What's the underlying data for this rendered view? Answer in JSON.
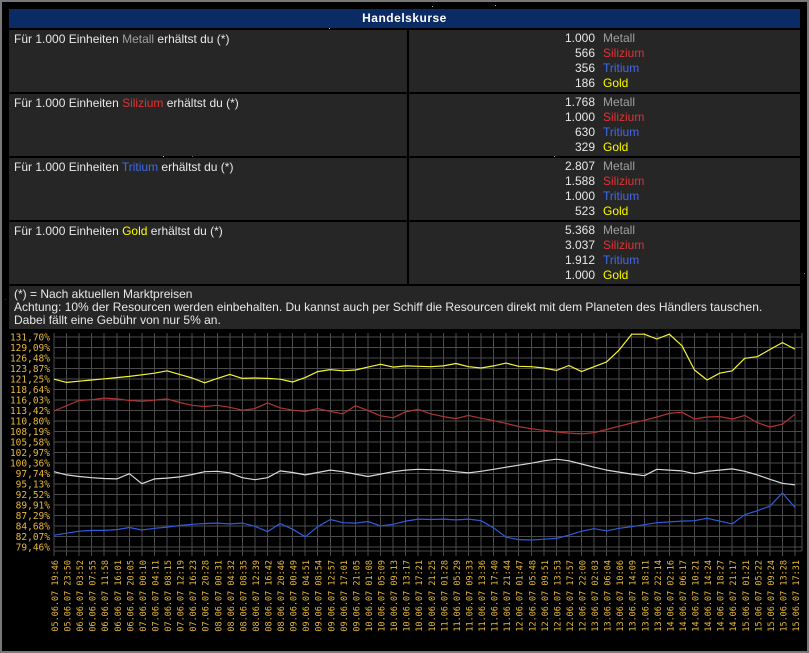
{
  "window": {
    "title": "Handelskurse"
  },
  "table": {
    "row_template": {
      "prefix": "Für 1.000 Einheiten",
      "suffix": "erhältst du (*)"
    },
    "rows": [
      {
        "resource": "Metall",
        "rates": [
          [
            "1.000",
            "Metall"
          ],
          [
            "566",
            "Silizium"
          ],
          [
            "356",
            "Tritium"
          ],
          [
            "186",
            "Gold"
          ]
        ]
      },
      {
        "resource": "Silizium",
        "rates": [
          [
            "1.768",
            "Metall"
          ],
          [
            "1.000",
            "Silizium"
          ],
          [
            "630",
            "Tritium"
          ],
          [
            "329",
            "Gold"
          ]
        ]
      },
      {
        "resource": "Tritium",
        "rates": [
          [
            "2.807",
            "Metall"
          ],
          [
            "1.588",
            "Silizium"
          ],
          [
            "1.000",
            "Tritium"
          ],
          [
            "523",
            "Gold"
          ]
        ]
      },
      {
        "resource": "Gold",
        "rates": [
          [
            "5.368",
            "Metall"
          ],
          [
            "3.037",
            "Silizium"
          ],
          [
            "1.912",
            "Tritium"
          ],
          [
            "1.000",
            "Gold"
          ]
        ]
      }
    ]
  },
  "notes": {
    "line1": "(*) = Nach aktuellen Marktpreisen",
    "line2": "Achtung: 10% der Resourcen werden einbehalten. Du kannst auch per Schiff die Resourcen direkt mit dem Planeten des Händlers tauschen. Dabei fällt eine Gebühr von nur 5% an."
  },
  "colors": {
    "header_bg": "#0b2b64",
    "cell_bg": "#262626",
    "grid": "#4b4b4b",
    "axis_label": "#e9b938",
    "resource": {
      "Metall": "#9f9f9f",
      "Silizium": "#e13232",
      "Tritium": "#4169e8",
      "Gold": "#fdfd00"
    }
  },
  "chart_data": {
    "type": "line",
    "title": "",
    "xlabel": "",
    "ylabel": "",
    "grid": true,
    "legend": false,
    "y_axis": {
      "tick_labels": [
        "131,70%",
        "129,09%",
        "126,48%",
        "123,87%",
        "121,25%",
        "118,64%",
        "116,03%",
        "113,42%",
        "110,80%",
        "108,19%",
        "105,58%",
        "102,97%",
        "100,36%",
        "97,74%",
        "95,13%",
        "92,52%",
        "89,91%",
        "87,29%",
        "84,68%",
        "82,07%",
        "79,46%"
      ],
      "tick_values": [
        131.7,
        129.09,
        126.48,
        123.87,
        121.25,
        118.64,
        116.03,
        113.42,
        110.8,
        108.19,
        105.58,
        102.97,
        100.36,
        97.74,
        95.13,
        92.52,
        89.91,
        87.29,
        84.68,
        82.07,
        79.46
      ]
    },
    "x_labels": [
      "05.06.07 19:46",
      "05.06.07 23:50",
      "06.06.07 03:52",
      "06.06.07 07:55",
      "06.06.07 11:58",
      "06.06.07 16:01",
      "06.06.07 20:05",
      "07.06.07 00:10",
      "07.06.07 04:11",
      "07.06.07 08:15",
      "07.06.07 12:19",
      "07.06.07 16:23",
      "07.06.07 20:28",
      "08.06.07 00:31",
      "08.06.07 04:32",
      "08.06.07 08:35",
      "08.06.07 12:39",
      "08.06.07 16:42",
      "08.06.07 20:46",
      "09.06.07 00:49",
      "09.06.07 04:51",
      "09.06.07 08:54",
      "09.06.07 12:57",
      "09.06.07 17:01",
      "09.06.07 21:05",
      "10.06.07 01:08",
      "10.06.07 05:09",
      "10.06.07 09:13",
      "10.06.07 13:17",
      "10.06.07 17:21",
      "10.06.07 21:25",
      "11.06.07 01:28",
      "11.06.07 05:29",
      "11.06.07 09:33",
      "11.06.07 13:36",
      "11.06.07 17:40",
      "11.06.07 21:44",
      "12.06.07 01:47",
      "12.06.07 05:48",
      "12.06.07 09:51",
      "12.06.07 13:53",
      "12.06.07 17:57",
      "12.06.07 22:00",
      "13.06.07 02:03",
      "13.06.07 06:04",
      "13.06.07 10:06",
      "13.06.07 14:09",
      "13.06.07 18:11",
      "13.06.07 22:14",
      "14.06.07 02:16",
      "14.06.07 06:17",
      "14.06.07 10:21",
      "14.06.07 14:24",
      "14.06.07 18:27",
      "14.06.07 21:17",
      "15.06.07 01:21",
      "15.06.07 05:22",
      "15.06.07 09:24",
      "15.06.07 13:28",
      "15.06.07 17:31"
    ],
    "series": [
      {
        "name": "Metall",
        "color": "#d9d9d9",
        "values": [
          98.2,
          97.4,
          97.0,
          96.7,
          96.5,
          96.4,
          97.7,
          95.2,
          96.4,
          96.6,
          96.9,
          97.5,
          98.2,
          98.3,
          97.9,
          96.7,
          96.2,
          96.7,
          98.4,
          98.0,
          97.4,
          98.0,
          98.6,
          98.2,
          97.6,
          97.0,
          97.6,
          98.2,
          98.6,
          98.8,
          98.7,
          98.6,
          98.2,
          97.9,
          98.3,
          98.8,
          99.3,
          99.8,
          100.3,
          100.9,
          101.3,
          100.9,
          100.1,
          99.3,
          98.6,
          98.1,
          97.6,
          97.2,
          98.8,
          98.6,
          98.4,
          97.7,
          98.3,
          98.6,
          98.9,
          98.3,
          97.4,
          96.3,
          95.3,
          94.9
        ]
      },
      {
        "name": "Silizium",
        "color": "#b23434",
        "values": [
          113.3,
          114.6,
          115.9,
          116.1,
          116.5,
          116.3,
          115.9,
          115.7,
          116.0,
          116.3,
          115.4,
          114.7,
          114.4,
          114.7,
          114.2,
          113.5,
          113.9,
          115.3,
          114.1,
          113.5,
          113.2,
          113.9,
          113.2,
          112.6,
          114.6,
          113.4,
          112.1,
          111.6,
          113.1,
          113.7,
          112.6,
          111.9,
          111.4,
          112.2,
          111.5,
          110.9,
          110.2,
          109.4,
          108.9,
          108.5,
          108.1,
          107.8,
          107.6,
          107.9,
          108.7,
          109.5,
          110.3,
          111.0,
          111.8,
          112.7,
          113.0,
          111.3,
          111.8,
          111.9,
          111.3,
          112.2,
          110.4,
          109.3,
          110.0,
          112.5
        ]
      },
      {
        "name": "Tritium",
        "color": "#2e5ddd",
        "values": [
          82.4,
          82.9,
          83.4,
          83.6,
          83.6,
          83.8,
          84.3,
          83.7,
          84.1,
          84.4,
          84.8,
          85.1,
          85.3,
          85.4,
          85.2,
          85.4,
          84.6,
          83.3,
          85.3,
          83.9,
          82.0,
          84.5,
          86.3,
          85.5,
          85.4,
          85.8,
          84.7,
          85.1,
          85.9,
          86.4,
          86.3,
          86.4,
          86.2,
          86.4,
          86.0,
          84.2,
          81.9,
          81.3,
          81.2,
          81.4,
          81.6,
          82.4,
          83.4,
          84.0,
          83.5,
          84.1,
          84.5,
          85.0,
          85.5,
          85.7,
          85.9,
          86.0,
          86.6,
          85.9,
          85.2,
          87.5,
          88.5,
          89.6,
          92.9,
          89.3
        ]
      },
      {
        "name": "Gold",
        "color": "#f4f435",
        "values": [
          121.2,
          120.4,
          120.7,
          121.0,
          121.3,
          121.6,
          121.9,
          122.3,
          122.7,
          123.3,
          122.4,
          121.5,
          120.3,
          121.4,
          122.4,
          121.4,
          121.5,
          121.4,
          121.2,
          120.5,
          121.6,
          123.1,
          123.6,
          123.3,
          123.5,
          124.2,
          124.9,
          124.2,
          124.5,
          124.4,
          124.3,
          124.5,
          125.1,
          124.3,
          124.0,
          124.5,
          125.2,
          124.4,
          124.3,
          124.0,
          123.4,
          124.6,
          123.1,
          124.3,
          125.5,
          128.5,
          132.4,
          132.4,
          131.2,
          132.4,
          129.5,
          123.5,
          121.0,
          122.7,
          123.3,
          126.4,
          126.8,
          128.6,
          130.3,
          128.7
        ]
      }
    ]
  }
}
